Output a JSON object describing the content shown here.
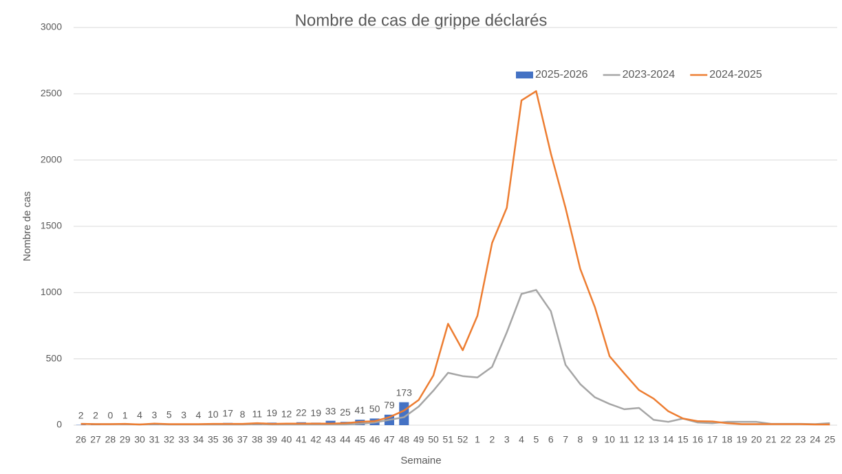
{
  "chart_data": {
    "type": "bar",
    "title": "Nombre de cas de grippe déclarés",
    "x_label": "Semaine",
    "y_label": "Nombre de cas",
    "categories": [
      "26",
      "27",
      "28",
      "29",
      "30",
      "31",
      "32",
      "33",
      "34",
      "35",
      "36",
      "37",
      "38",
      "39",
      "40",
      "41",
      "42",
      "43",
      "44",
      "45",
      "46",
      "47",
      "48",
      "49",
      "50",
      "51",
      "52",
      "1",
      "2",
      "3",
      "4",
      "5",
      "6",
      "7",
      "8",
      "9",
      "10",
      "11",
      "12",
      "13",
      "14",
      "15",
      "16",
      "17",
      "18",
      "19",
      "20",
      "21",
      "22",
      "23",
      "24",
      "25"
    ],
    "series": [
      {
        "name": "2025-2026",
        "type": "bar",
        "color": "#4472c4",
        "show_value_labels": true,
        "values": [
          2,
          2,
          0,
          1,
          4,
          3,
          5,
          3,
          4,
          10,
          17,
          8,
          11,
          19,
          12,
          22,
          19,
          33,
          25,
          41,
          50,
          79,
          173,
          null,
          null,
          null,
          null,
          null,
          null,
          null,
          null,
          null,
          null,
          null,
          null,
          null,
          null,
          null,
          null,
          null,
          null,
          null,
          null,
          null,
          null,
          null,
          null,
          null,
          null,
          null,
          null,
          null
        ]
      },
      {
        "name": "2023-2024",
        "type": "line",
        "color": "#a5a5a5",
        "values": [
          10,
          8,
          8,
          8,
          5,
          8,
          5,
          5,
          5,
          5,
          5,
          5,
          8,
          5,
          5,
          5,
          5,
          5,
          5,
          10,
          20,
          40,
          60,
          140,
          260,
          395,
          370,
          360,
          440,
          700,
          990,
          1020,
          860,
          455,
          310,
          210,
          160,
          120,
          130,
          40,
          25,
          50,
          20,
          15,
          25,
          25,
          25,
          10,
          10,
          10,
          8,
          15
        ]
      },
      {
        "name": "2024-2025",
        "type": "line",
        "color": "#ed7d31",
        "values": [
          10,
          8,
          8,
          10,
          5,
          12,
          8,
          8,
          8,
          10,
          10,
          10,
          15,
          10,
          12,
          12,
          12,
          12,
          15,
          25,
          30,
          60,
          110,
          190,
          375,
          765,
          565,
          825,
          1375,
          1640,
          2450,
          2520,
          2050,
          1640,
          1180,
          890,
          520,
          390,
          265,
          200,
          105,
          50,
          30,
          28,
          15,
          8,
          8,
          8,
          8,
          8,
          5,
          5
        ]
      }
    ],
    "ylim": [
      0,
      3000
    ],
    "yticks": [
      0,
      500,
      1000,
      1500,
      2000,
      2500,
      3000
    ],
    "grid": true,
    "legend": "top"
  }
}
